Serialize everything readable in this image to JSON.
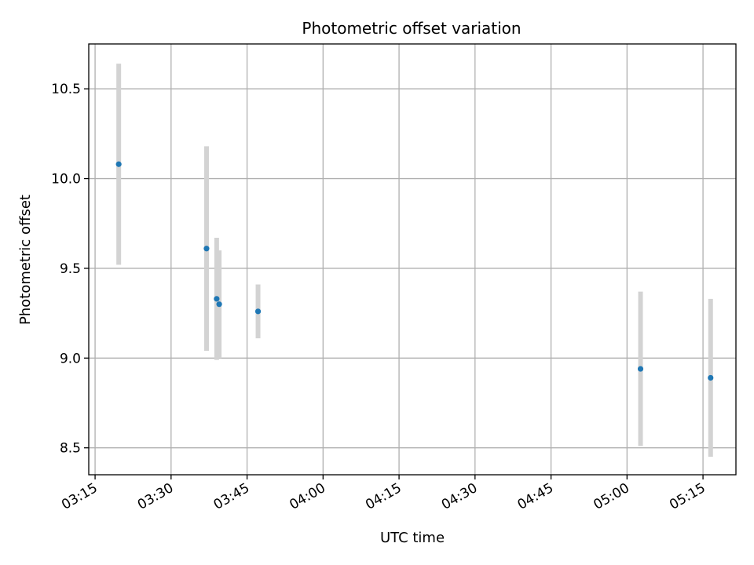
{
  "chart_data": {
    "type": "scatter",
    "title": "Photometric offset variation",
    "xlabel": "UTC time",
    "ylabel": "Photometric offset",
    "xlim": [
      "03:13:45",
      "05:21:30"
    ],
    "ylim": [
      8.35,
      10.75
    ],
    "x_ticks": [
      "03:15",
      "03:30",
      "03:45",
      "04:00",
      "04:15",
      "04:30",
      "04:45",
      "05:00",
      "05:15"
    ],
    "y_ticks": [
      8.5,
      9.0,
      9.5,
      10.0,
      10.5
    ],
    "y_tick_labels": [
      "8.5",
      "9.0",
      "9.5",
      "10.0",
      "10.5"
    ],
    "grid": true,
    "marker_color": "#1f77b4",
    "errorbar_color": "#d3d3d3",
    "points": [
      {
        "time": "03:19:40",
        "value": 10.08,
        "error": 0.56
      },
      {
        "time": "03:37:00",
        "value": 9.61,
        "error": 0.57
      },
      {
        "time": "03:39:00",
        "value": 9.33,
        "error": 0.34
      },
      {
        "time": "03:39:30",
        "value": 9.3,
        "error": 0.3
      },
      {
        "time": "03:47:10",
        "value": 9.26,
        "error": 0.15
      },
      {
        "time": "05:02:40",
        "value": 8.94,
        "error": 0.43
      },
      {
        "time": "05:16:30",
        "value": 8.89,
        "error": 0.44
      }
    ]
  }
}
